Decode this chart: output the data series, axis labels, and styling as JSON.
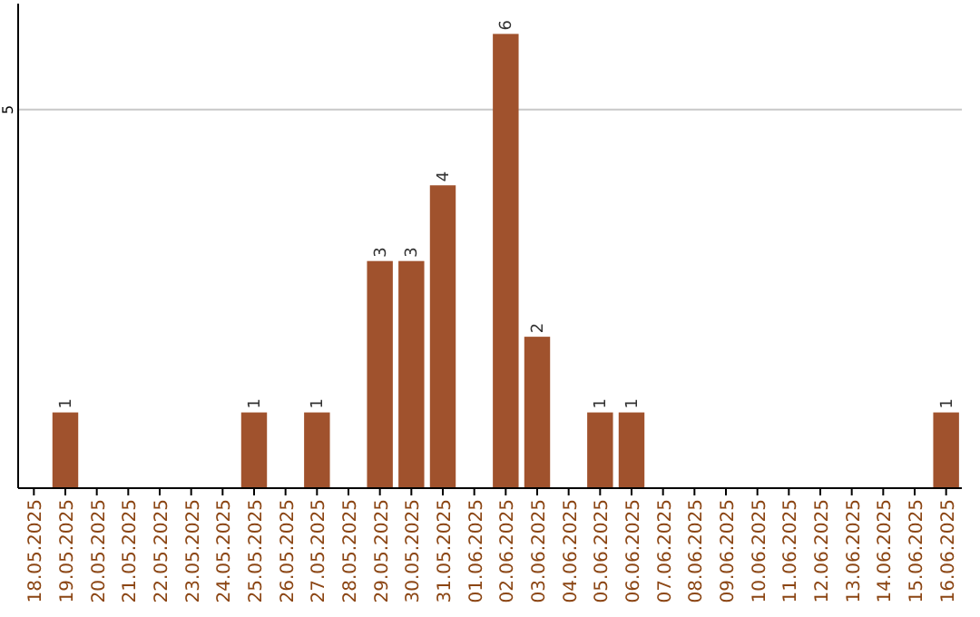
{
  "chart_data": {
    "type": "bar",
    "categories": [
      "18.05.2025",
      "19.05.2025",
      "20.05.2025",
      "21.05.2025",
      "22.05.2025",
      "23.05.2025",
      "24.05.2025",
      "25.05.2025",
      "26.05.2025",
      "27.05.2025",
      "28.05.2025",
      "29.05.2025",
      "30.05.2025",
      "31.05.2025",
      "01.06.2025",
      "02.06.2025",
      "03.06.2025",
      "04.06.2025",
      "05.06.2025",
      "06.06.2025",
      "07.06.2025",
      "08.06.2025",
      "09.06.2025",
      "10.06.2025",
      "11.06.2025",
      "12.06.2025",
      "13.06.2025",
      "14.06.2025",
      "15.06.2025",
      "16.06.2025"
    ],
    "values": [
      0,
      1,
      0,
      0,
      0,
      0,
      0,
      1,
      0,
      1,
      0,
      3,
      3,
      4,
      0,
      6,
      2,
      0,
      1,
      1,
      0,
      0,
      0,
      0,
      0,
      0,
      0,
      0,
      0,
      1
    ],
    "value_labels": [
      null,
      "1",
      null,
      null,
      null,
      null,
      null,
      "1",
      null,
      "1",
      null,
      "3",
      "3",
      "4",
      null,
      "6",
      "2",
      null,
      "1",
      "1",
      null,
      null,
      null,
      null,
      null,
      null,
      null,
      null,
      null,
      "1"
    ],
    "color": "#a0522d",
    "ylim": [
      0,
      6.4
    ],
    "yticks": [
      5
    ],
    "grid": "y"
  }
}
